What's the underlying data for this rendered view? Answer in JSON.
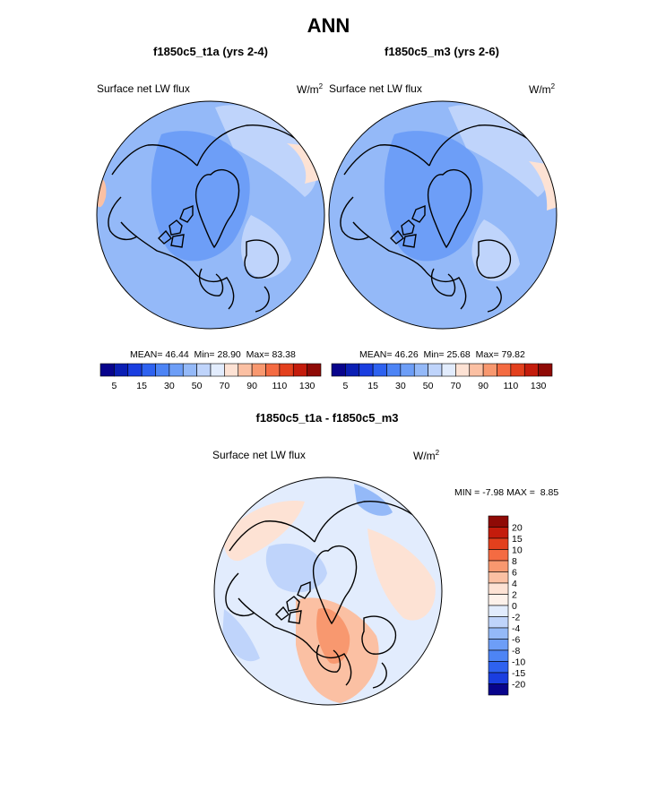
{
  "chart_data": {
    "type": "heatmap",
    "title": "ANN",
    "panels": [
      {
        "case": "f1850c5_t1a (yrs 2-4)",
        "variable": "Surface net LW flux",
        "units_base": "W/m",
        "units_exp": "2",
        "projection": "north polar stereographic",
        "stats": {
          "mean_label": "MEAN=",
          "mean": "46.44",
          "min_label": "Min=",
          "min": "28.90",
          "max_label": "Max=",
          "max": "83.38"
        }
      },
      {
        "case": "f1850c5_m3 (yrs 2-6)",
        "variable": "Surface net LW flux",
        "units_base": "W/m",
        "units_exp": "2",
        "projection": "north polar stereographic",
        "stats": {
          "mean_label": "MEAN=",
          "mean": "46.26",
          "min_label": "Min=",
          "min": "25.68",
          "max_label": "Max=",
          "max": "79.82"
        }
      },
      {
        "case": "f1850c5_t1a - f1850c5_m3",
        "variable": "Surface net LW flux",
        "units_base": "W/m",
        "units_exp": "2",
        "projection": "north polar stereographic",
        "stats": {
          "min_label": "MIN =",
          "min": "-7.98",
          "max_label": "MAX =",
          "max": "8.85"
        }
      }
    ],
    "field_colorbar": {
      "levels": [
        5,
        10,
        15,
        20,
        30,
        40,
        50,
        60,
        70,
        80,
        90,
        100,
        110,
        120,
        130
      ],
      "tick_labels": [
        "5",
        "15",
        "30",
        "50",
        "70",
        "90",
        "110",
        "130"
      ],
      "colors": [
        "#08048c",
        "#0b1fb4",
        "#1a3ee0",
        "#2e62f0",
        "#4d84f5",
        "#6d9ef7",
        "#94b9f8",
        "#bfd4fb",
        "#e2ecfd",
        "#fde2d4",
        "#fbc0a3",
        "#f8986f",
        "#f46b42",
        "#e3401d",
        "#c41c0c",
        "#8f0a06"
      ]
    },
    "diff_colorbar": {
      "levels": [
        -20,
        -15,
        -10,
        -8,
        -6,
        -4,
        -2,
        0,
        2,
        4,
        6,
        8,
        10,
        15,
        20
      ],
      "tick_labels": [
        "20",
        "15",
        "10",
        "8",
        "6",
        "4",
        "2",
        "0",
        "-2",
        "-4",
        "-6",
        "-8",
        "-10",
        "-15",
        "-20"
      ],
      "colors_top_to_bottom": [
        "#8f0a06",
        "#c41c0c",
        "#e3401d",
        "#f46b42",
        "#f8986f",
        "#fbc0a3",
        "#fde2d4",
        "#fdf1ea",
        "#e2ecfd",
        "#bfd4fb",
        "#94b9f8",
        "#6d9ef7",
        "#4d84f5",
        "#2e62f0",
        "#1a3ee0",
        "#08048c"
      ]
    }
  }
}
